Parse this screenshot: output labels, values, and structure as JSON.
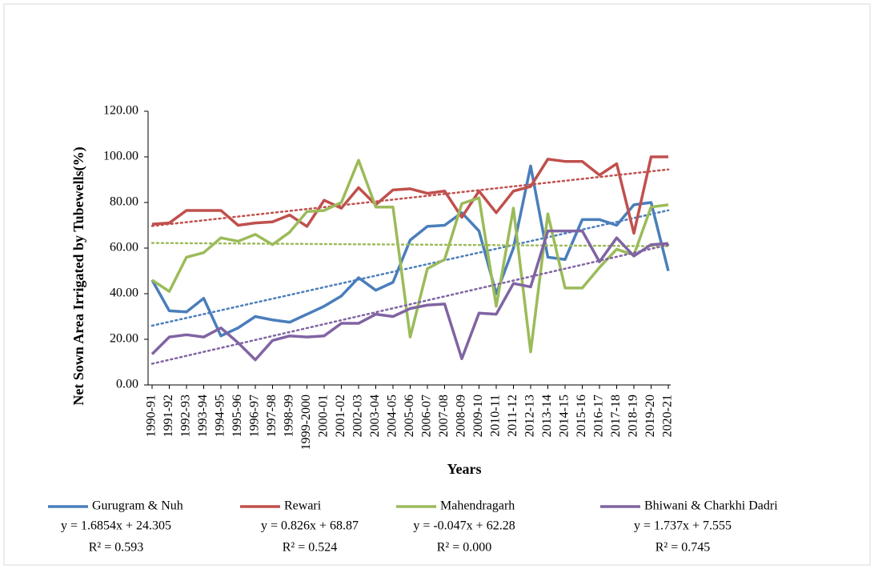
{
  "chart_data": {
    "type": "line",
    "y_label": "Net Sown Area Irrigated by Tubewells(%)",
    "x_label": "Years",
    "categories": [
      "1990-91",
      "1991-92",
      "1992-93",
      "1993-94",
      "1994-95",
      "1995-96",
      "1996-97",
      "1997-98",
      "1998-99",
      "1999-2000",
      "2000-01",
      "2001-02",
      "2002-03",
      "2003-04",
      "2004-05",
      "2005-06",
      "2006-07",
      "2007-08",
      "2008-09",
      "2009-10",
      "2010-11",
      "2011-12",
      "2012-13",
      "2013-14",
      "2014-15",
      "2015-16",
      "2016-17",
      "2017-18",
      "2018-19",
      "2019-20",
      "2020-21"
    ],
    "ylim": [
      0,
      120
    ],
    "yticks": [
      {
        "value": 0,
        "label": "0.00"
      },
      {
        "value": 20,
        "label": "20.00"
      },
      {
        "value": 40,
        "label": "40.00"
      },
      {
        "value": 60,
        "label": "60.00"
      },
      {
        "value": 80,
        "label": "80.00"
      },
      {
        "value": 100,
        "label": "100.00"
      },
      {
        "value": 120,
        "label": "120.00"
      }
    ],
    "series": [
      {
        "name": "Gurugram & Nuh",
        "color": "#4a7ebb",
        "values": [
          46,
          32.5,
          32,
          38,
          21.5,
          25,
          30,
          28.5,
          27.5,
          31,
          34.5,
          39,
          47,
          41.5,
          45,
          63.5,
          69.5,
          70,
          75.5,
          67.5,
          40,
          60,
          96,
          56,
          55,
          72.5,
          72.5,
          70,
          79,
          80,
          50
        ],
        "trendline": {
          "equation": "y = 1.6854x + 24.305",
          "slope": 1.6854,
          "intercept": 24.305,
          "r2": 0.593,
          "r2_label": "R² = 0.593"
        }
      },
      {
        "name": "Rewari",
        "color": "#c0504d",
        "values": [
          70.5,
          71,
          76.5,
          76.5,
          76.5,
          70,
          71,
          71.5,
          74.5,
          69.5,
          81,
          77.5,
          86.5,
          79,
          85.5,
          86,
          84,
          85,
          73.5,
          85,
          75.5,
          85,
          87,
          99,
          98,
          98,
          92,
          97,
          66.5,
          100,
          100
        ],
        "trendline": {
          "equation": "y = 0.826x + 68.87",
          "slope": 0.826,
          "intercept": 68.87,
          "r2": 0.524,
          "r2_label": "R² = 0.524"
        }
      },
      {
        "name": "Mahendragarh",
        "color": "#9bbb59",
        "values": [
          46,
          41,
          56,
          58,
          64.5,
          63,
          66,
          61.5,
          67,
          76,
          76.5,
          80,
          98.5,
          78,
          78,
          21,
          51,
          55,
          79.5,
          82,
          34.5,
          77.5,
          14.5,
          75,
          42.5,
          42.5,
          51.5,
          59.5,
          57,
          78,
          79
        ],
        "trendline": {
          "equation": "y = -0.047x + 62.28",
          "slope": -0.047,
          "intercept": 62.28,
          "r2": 0.0,
          "r2_label": "R² = 0.000"
        }
      },
      {
        "name": "Bhiwani & Charkhi Dadri",
        "color": "#8064a2",
        "values": [
          13.5,
          21,
          22,
          21,
          25,
          18.5,
          11,
          19.5,
          21.5,
          21,
          21.5,
          27,
          27,
          31,
          30,
          33.5,
          35,
          35.5,
          11.5,
          31.5,
          31,
          44.5,
          43,
          67.5,
          67.5,
          67.5,
          54,
          64.5,
          56.5,
          61.5,
          62
        ],
        "trendline": {
          "equation": "y = 1.737x + 7.555",
          "slope": 1.737,
          "intercept": 7.555,
          "r2": 0.745,
          "r2_label": "R² = 0.745"
        }
      }
    ]
  }
}
